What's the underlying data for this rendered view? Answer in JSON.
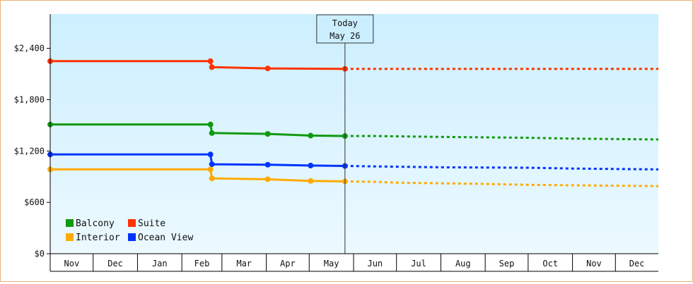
{
  "chart_data": {
    "type": "line",
    "title": "",
    "xlabel": "",
    "ylabel": "",
    "ylim": [
      0,
      2800
    ],
    "y_ticks": [
      {
        "value": 0,
        "label": "$0"
      },
      {
        "value": 600,
        "label": "$600"
      },
      {
        "value": 1200,
        "label": "$1,200"
      },
      {
        "value": 1800,
        "label": "$1,800"
      },
      {
        "value": 2400,
        "label": "$2,400"
      }
    ],
    "x_range": [
      "2024-11-01",
      "2025-12-31"
    ],
    "months": [
      {
        "label": "Nov",
        "date": "2024-11-01"
      },
      {
        "label": "Dec",
        "date": "2024-12-01"
      },
      {
        "label": "Jan",
        "date": "2025-01-01"
      },
      {
        "label": "Feb",
        "date": "2025-02-01"
      },
      {
        "label": "Mar",
        "date": "2025-03-01"
      },
      {
        "label": "Apr",
        "date": "2025-04-01"
      },
      {
        "label": "May",
        "date": "2025-05-01"
      },
      {
        "label": "Jun",
        "date": "2025-06-01"
      },
      {
        "label": "Jul",
        "date": "2025-07-01"
      },
      {
        "label": "Aug",
        "date": "2025-08-01"
      },
      {
        "label": "Sep",
        "date": "2025-09-01"
      },
      {
        "label": "Oct",
        "date": "2025-10-01"
      },
      {
        "label": "Nov",
        "date": "2025-11-01"
      },
      {
        "label": "Dec",
        "date": "2025-12-01"
      }
    ],
    "today": {
      "date": "2025-05-26",
      "line1": "Today",
      "line2": "May 26"
    },
    "legend_position": "bottom-left",
    "series": [
      {
        "name": "Suite",
        "color": "#ff3300",
        "points": [
          [
            "2024-11-01",
            2250
          ],
          [
            "2025-02-21",
            2250
          ],
          [
            "2025-02-22",
            2180
          ],
          [
            "2025-04-02",
            2165
          ],
          [
            "2025-05-26",
            2160
          ]
        ],
        "forecast": [
          [
            "2025-05-26",
            2160
          ],
          [
            "2025-12-31",
            2160
          ]
        ]
      },
      {
        "name": "Balcony",
        "color": "#119911",
        "points": [
          [
            "2024-11-01",
            1510
          ],
          [
            "2025-02-21",
            1510
          ],
          [
            "2025-02-22",
            1410
          ],
          [
            "2025-04-02",
            1400
          ],
          [
            "2025-05-02",
            1380
          ],
          [
            "2025-05-26",
            1375
          ]
        ],
        "forecast": [
          [
            "2025-05-26",
            1375
          ],
          [
            "2025-06-15",
            1375
          ],
          [
            "2025-08-01",
            1365
          ],
          [
            "2025-10-01",
            1355
          ],
          [
            "2025-11-01",
            1345
          ],
          [
            "2025-12-31",
            1335
          ]
        ]
      },
      {
        "name": "Ocean View",
        "color": "#0033ff",
        "points": [
          [
            "2024-11-01",
            1160
          ],
          [
            "2025-02-21",
            1160
          ],
          [
            "2025-02-22",
            1045
          ],
          [
            "2025-04-02",
            1040
          ],
          [
            "2025-05-02",
            1030
          ],
          [
            "2025-05-26",
            1025
          ]
        ],
        "forecast": [
          [
            "2025-05-26",
            1025
          ],
          [
            "2025-06-15",
            1020
          ],
          [
            "2025-08-01",
            1010
          ],
          [
            "2025-10-01",
            1005
          ],
          [
            "2025-11-01",
            995
          ],
          [
            "2025-12-31",
            985
          ]
        ]
      },
      {
        "name": "Interior",
        "color": "#ffaa00",
        "points": [
          [
            "2024-11-01",
            985
          ],
          [
            "2025-02-21",
            985
          ],
          [
            "2025-02-22",
            880
          ],
          [
            "2025-04-02",
            870
          ],
          [
            "2025-05-02",
            850
          ],
          [
            "2025-05-26",
            845
          ]
        ],
        "forecast": [
          [
            "2025-05-26",
            845
          ],
          [
            "2025-06-15",
            840
          ],
          [
            "2025-07-01",
            830
          ],
          [
            "2025-09-01",
            815
          ],
          [
            "2025-10-01",
            805
          ],
          [
            "2025-12-31",
            790
          ]
        ]
      }
    ],
    "legend": [
      {
        "name": "Balcony",
        "color": "#119911"
      },
      {
        "name": "Suite",
        "color": "#ff3300"
      },
      {
        "name": "Interior",
        "color": "#ffaa00"
      },
      {
        "name": "Ocean View",
        "color": "#0033ff"
      }
    ]
  }
}
